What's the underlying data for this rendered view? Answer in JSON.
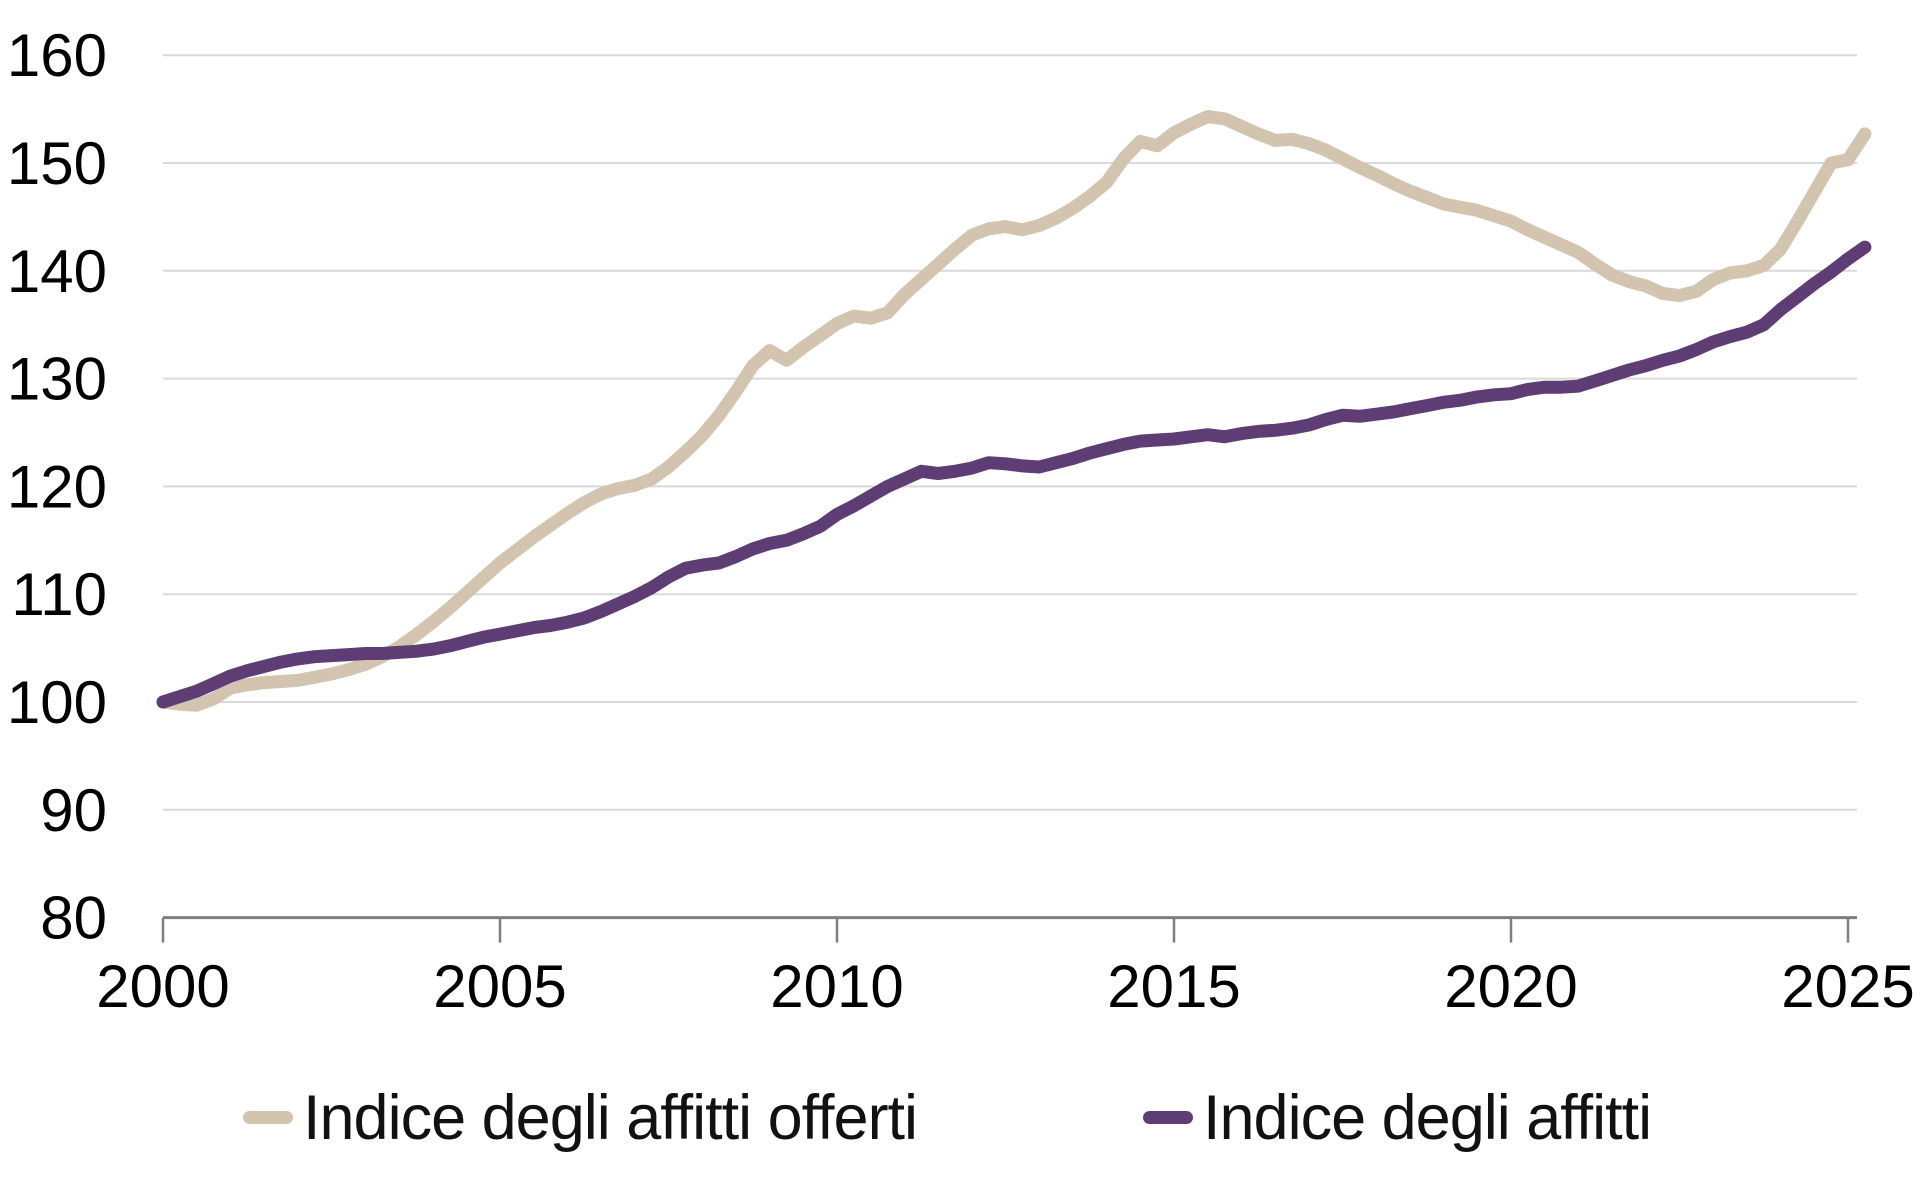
{
  "chart_data": {
    "type": "line",
    "title": "",
    "xlabel": "",
    "ylabel": "",
    "x_start": 2000,
    "x_step": 0.25,
    "xlim": [
      2000,
      2025.3
    ],
    "ylim": [
      80,
      163
    ],
    "x_ticks": [
      "2000",
      "2005",
      "2010",
      "2015",
      "2020",
      "2025"
    ],
    "x_tick_years": [
      2000,
      2005,
      2010,
      2015,
      2020,
      2025
    ],
    "y_ticks": [
      "80",
      "90",
      "100",
      "110",
      "120",
      "130",
      "140",
      "150",
      "160"
    ],
    "y_tick_values": [
      80,
      90,
      100,
      110,
      120,
      130,
      140,
      150,
      160
    ],
    "grid": "horizontal",
    "legend_position": "bottom",
    "colors": {
      "grid_color": "#d9d9d9",
      "axis_color": "#7f7f7f",
      "text_color": "#000000",
      "background": "#ffffff"
    },
    "series": [
      {
        "name": "Indice degli affitti offerti",
        "color": "#d2c4ae",
        "values": [
          100.0,
          99.8,
          99.7,
          100.3,
          101.3,
          101.6,
          101.8,
          101.9,
          102.0,
          102.3,
          102.6,
          103.0,
          103.5,
          104.2,
          105.1,
          106.2,
          107.4,
          108.7,
          110.1,
          111.5,
          112.9,
          114.1,
          115.3,
          116.4,
          117.5,
          118.5,
          119.3,
          119.8,
          120.1,
          120.7,
          121.8,
          123.2,
          124.7,
          126.6,
          128.8,
          131.2,
          132.6,
          131.7,
          132.9,
          134.0,
          135.1,
          135.8,
          135.6,
          136.1,
          137.8,
          139.2,
          140.6,
          142.0,
          143.3,
          143.9,
          144.1,
          143.8,
          144.2,
          144.9,
          145.8,
          146.9,
          148.2,
          150.4,
          152.0,
          151.6,
          152.8,
          153.6,
          154.3,
          154.1,
          153.4,
          152.7,
          152.1,
          152.2,
          151.8,
          151.2,
          150.4,
          149.6,
          148.9,
          148.1,
          147.4,
          146.8,
          146.2,
          145.9,
          145.6,
          145.1,
          144.6,
          143.8,
          143.1,
          142.4,
          141.7,
          140.6,
          139.6,
          139.0,
          138.6,
          137.9,
          137.7,
          138.1,
          139.2,
          139.8,
          140.0,
          140.5,
          142.0,
          144.6,
          147.3,
          150.0,
          150.3,
          152.7
        ]
      },
      {
        "name": "Indice degli affitti",
        "color": "#5e3d75",
        "values": [
          100.0,
          100.5,
          101.0,
          101.7,
          102.4,
          102.9,
          103.3,
          103.7,
          104.0,
          104.2,
          104.3,
          104.4,
          104.5,
          104.5,
          104.6,
          104.7,
          104.9,
          105.2,
          105.6,
          106.0,
          106.3,
          106.6,
          106.9,
          107.1,
          107.4,
          107.8,
          108.4,
          109.1,
          109.8,
          110.6,
          111.6,
          112.4,
          112.7,
          112.9,
          113.5,
          114.2,
          114.7,
          115.0,
          115.6,
          116.3,
          117.4,
          118.2,
          119.1,
          120.0,
          120.7,
          121.4,
          121.2,
          121.4,
          121.7,
          122.2,
          122.1,
          121.9,
          121.8,
          122.2,
          122.6,
          123.1,
          123.5,
          123.9,
          124.2,
          124.3,
          124.4,
          124.6,
          124.8,
          124.6,
          124.9,
          125.1,
          125.2,
          125.4,
          125.7,
          126.2,
          126.6,
          126.5,
          126.7,
          126.9,
          127.2,
          127.5,
          127.8,
          128.0,
          128.3,
          128.5,
          128.6,
          129.0,
          129.2,
          129.2,
          129.3,
          129.8,
          130.3,
          130.8,
          131.2,
          131.7,
          132.1,
          132.7,
          133.4,
          133.9,
          134.3,
          135.0,
          136.4,
          137.6,
          138.8,
          139.9,
          141.1,
          142.2
        ]
      }
    ]
  }
}
